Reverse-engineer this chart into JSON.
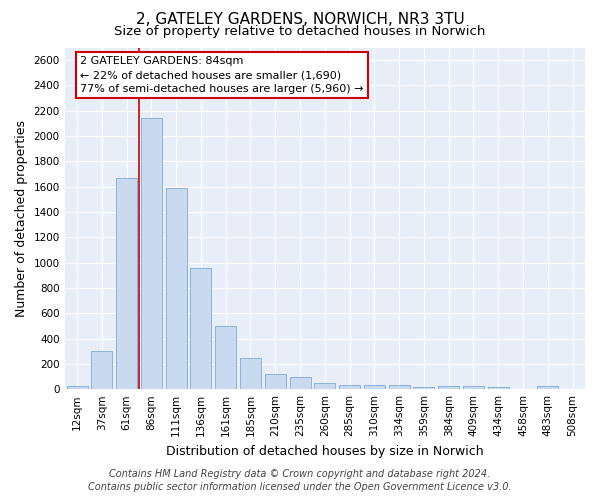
{
  "title_line1": "2, GATELEY GARDENS, NORWICH, NR3 3TU",
  "title_line2": "Size of property relative to detached houses in Norwich",
  "xlabel": "Distribution of detached houses by size in Norwich",
  "ylabel": "Number of detached properties",
  "categories": [
    "12sqm",
    "37sqm",
    "61sqm",
    "86sqm",
    "111sqm",
    "136sqm",
    "161sqm",
    "185sqm",
    "210sqm",
    "235sqm",
    "260sqm",
    "285sqm",
    "310sqm",
    "334sqm",
    "359sqm",
    "384sqm",
    "409sqm",
    "434sqm",
    "458sqm",
    "483sqm",
    "508sqm"
  ],
  "values": [
    25,
    300,
    1670,
    2140,
    1590,
    960,
    500,
    250,
    120,
    100,
    50,
    35,
    35,
    35,
    20,
    25,
    25,
    20,
    5,
    25,
    0
  ],
  "bar_color": "#c8d9f0",
  "bar_edge_color": "#7aaad4",
  "vline_color": "#cc0000",
  "ylim": [
    0,
    2700
  ],
  "yticks": [
    0,
    200,
    400,
    600,
    800,
    1000,
    1200,
    1400,
    1600,
    1800,
    2000,
    2200,
    2400,
    2600
  ],
  "annotation_line1": "2 GATELEY GARDENS: 84sqm",
  "annotation_line2": "← 22% of detached houses are smaller (1,690)",
  "annotation_line3": "77% of semi-detached houses are larger (5,960) →",
  "annotation_box_color": "#ffffff",
  "annotation_border_color": "#cc0000",
  "footer_line1": "Contains HM Land Registry data © Crown copyright and database right 2024.",
  "footer_line2": "Contains public sector information licensed under the Open Government Licence v3.0.",
  "bg_color": "#e8eef8",
  "grid_color": "#ffffff",
  "title1_fontsize": 11,
  "title2_fontsize": 9.5,
  "xlabel_fontsize": 9,
  "ylabel_fontsize": 9,
  "tick_fontsize": 7.5,
  "annotation_fontsize": 8,
  "footer_fontsize": 7
}
